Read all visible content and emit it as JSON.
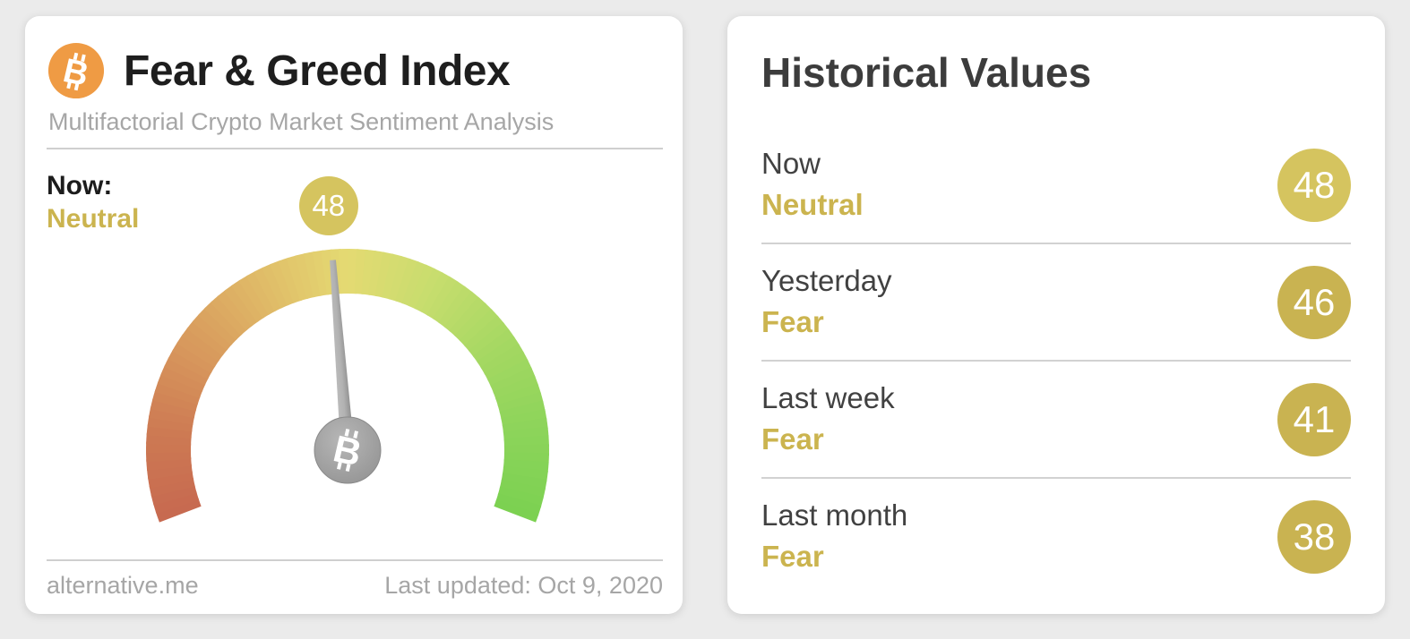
{
  "colors": {
    "page_bg": "#ebebeb",
    "card_bg": "#ffffff",
    "gold_text": "#cbb44f",
    "gauge_badge": "#d5c45f",
    "badge_gold": "#c9b351",
    "bitcoin_orange": "#ef9b44",
    "needle_gray": "#a0a0a0",
    "title_black": "#1e1e1e",
    "heading_gray": "#3c3c3c",
    "muted_gray": "#a6a6a6"
  },
  "icons": {
    "header_icon": "bitcoin-icon",
    "gauge_hub_icon": "bitcoin-icon",
    "bitcoin_glyph": "₿"
  },
  "left_card": {
    "title": "Fear & Greed Index",
    "subtitle": "Multifactorial Crypto Market Sentiment Analysis",
    "now_label": "Now:",
    "now_classification": "Neutral",
    "gauge_value_badge": "48",
    "footer_left": "alternative.me",
    "footer_right": "Last updated: Oct 9, 2020"
  },
  "right_card": {
    "title": "Historical Values",
    "rows": [
      {
        "label": "Now",
        "classification": "Neutral",
        "value": "48",
        "badge_color": "#d5c45f"
      },
      {
        "label": "Yesterday",
        "classification": "Fear",
        "value": "46",
        "badge_color": "#c9b351"
      },
      {
        "label": "Last week",
        "classification": "Fear",
        "value": "41",
        "badge_color": "#c9b351"
      },
      {
        "label": "Last month",
        "classification": "Fear",
        "value": "38",
        "badge_color": "#c9b351"
      }
    ]
  },
  "chart_data": {
    "type": "gauge",
    "title": "Fear & Greed Index",
    "value": 48,
    "min": 0,
    "max": 100,
    "classification": "Neutral",
    "arc_span_degrees": 222,
    "legend": "0 = Extreme Fear (red, left) to 100 = Extreme Greed (green, right)",
    "color_stops": [
      {
        "t": 0.0,
        "color": "#c76950"
      },
      {
        "t": 0.12,
        "color": "#cd7a53"
      },
      {
        "t": 0.25,
        "color": "#d89a5d"
      },
      {
        "t": 0.38,
        "color": "#e0bc68"
      },
      {
        "t": 0.5,
        "color": "#e4da72"
      },
      {
        "t": 0.62,
        "color": "#c8dd6e"
      },
      {
        "t": 0.75,
        "color": "#a5d862"
      },
      {
        "t": 0.88,
        "color": "#8cd45a"
      },
      {
        "t": 1.0,
        "color": "#7bd151"
      }
    ],
    "historical": [
      {
        "label": "Now",
        "classification": "Neutral",
        "value": 48
      },
      {
        "label": "Yesterday",
        "classification": "Fear",
        "value": 46
      },
      {
        "label": "Last week",
        "classification": "Fear",
        "value": 41
      },
      {
        "label": "Last month",
        "classification": "Fear",
        "value": 38
      }
    ]
  }
}
